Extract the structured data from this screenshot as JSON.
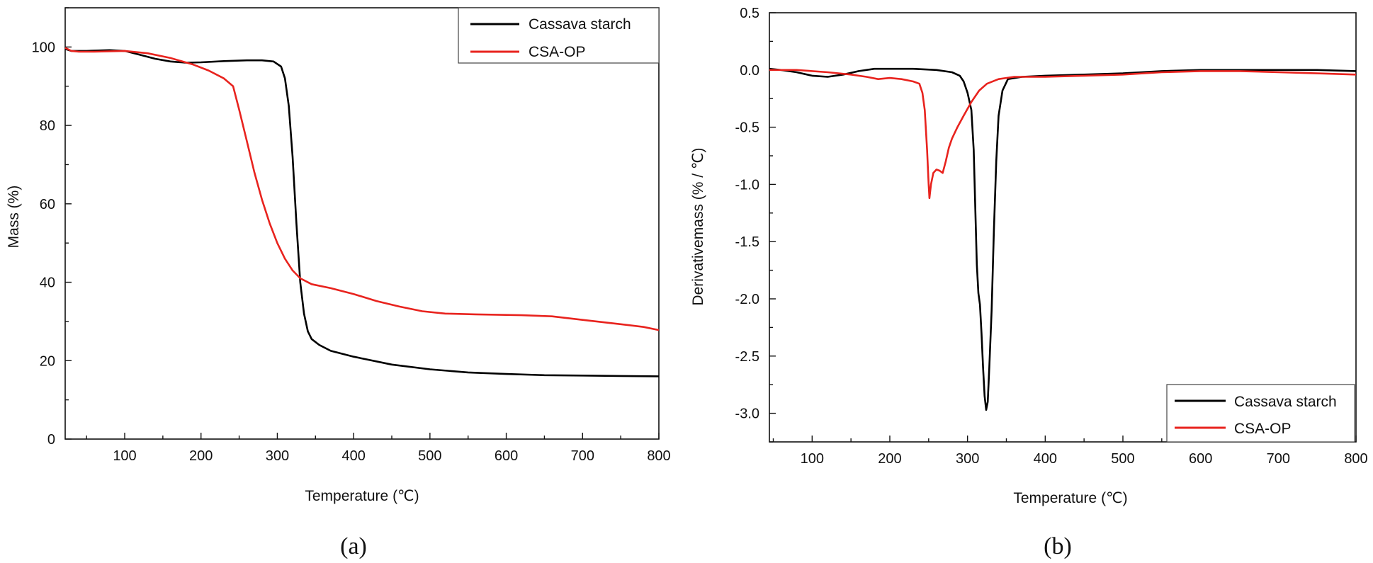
{
  "chart_data": [
    {
      "type": "line",
      "panel_label": "(a)",
      "xlabel": "Temperature (℃)",
      "ylabel": "Mass (%)",
      "xlim": [
        22,
        800
      ],
      "ylim": [
        0,
        110
      ],
      "xticks": [
        100,
        200,
        300,
        400,
        500,
        600,
        700,
        800
      ],
      "yticks": [
        0,
        20,
        40,
        60,
        80,
        100
      ],
      "grid": false,
      "legend_position": "top-right",
      "series": [
        {
          "name": "Cassava starch",
          "color": "#000000",
          "points": [
            [
              22,
              99.5
            ],
            [
              30,
              99
            ],
            [
              50,
              99
            ],
            [
              80,
              99.2
            ],
            [
              100,
              99
            ],
            [
              120,
              98
            ],
            [
              140,
              97
            ],
            [
              160,
              96.3
            ],
            [
              180,
              96
            ],
            [
              200,
              96.1
            ],
            [
              230,
              96.4
            ],
            [
              260,
              96.6
            ],
            [
              280,
              96.6
            ],
            [
              295,
              96.3
            ],
            [
              305,
              95
            ],
            [
              310,
              92
            ],
            [
              315,
              85
            ],
            [
              320,
              72
            ],
            [
              325,
              55
            ],
            [
              330,
              40
            ],
            [
              335,
              32
            ],
            [
              340,
              27.5
            ],
            [
              345,
              25.5
            ],
            [
              355,
              24
            ],
            [
              370,
              22.5
            ],
            [
              400,
              21
            ],
            [
              450,
              19
            ],
            [
              500,
              17.8
            ],
            [
              550,
              17
            ],
            [
              600,
              16.6
            ],
            [
              650,
              16.3
            ],
            [
              700,
              16.2
            ],
            [
              750,
              16.1
            ],
            [
              800,
              16
            ]
          ]
        },
        {
          "name": "CSA-OP",
          "color": "#e8231e",
          "points": [
            [
              22,
              99.8
            ],
            [
              30,
              99
            ],
            [
              40,
              98.8
            ],
            [
              60,
              98.8
            ],
            [
              100,
              99
            ],
            [
              130,
              98.4
            ],
            [
              160,
              97.2
            ],
            [
              190,
              95.5
            ],
            [
              210,
              94
            ],
            [
              230,
              92
            ],
            [
              242,
              90
            ],
            [
              250,
              84
            ],
            [
              260,
              76
            ],
            [
              270,
              68
            ],
            [
              280,
              61
            ],
            [
              290,
              55
            ],
            [
              300,
              50
            ],
            [
              310,
              46
            ],
            [
              320,
              43
            ],
            [
              330,
              41
            ],
            [
              345,
              39.5
            ],
            [
              370,
              38.5
            ],
            [
              400,
              37
            ],
            [
              430,
              35.2
            ],
            [
              460,
              33.8
            ],
            [
              490,
              32.6
            ],
            [
              520,
              32
            ],
            [
              560,
              31.8
            ],
            [
              620,
              31.6
            ],
            [
              660,
              31.3
            ],
            [
              700,
              30.4
            ],
            [
              750,
              29.3
            ],
            [
              780,
              28.6
            ],
            [
              800,
              27.8
            ]
          ]
        }
      ]
    },
    {
      "type": "line",
      "panel_label": "(b)",
      "xlabel": "Temperature (℃)",
      "ylabel": "Derivativemass (% / ℃)",
      "xlim": [
        45,
        800
      ],
      "ylim": [
        -3.25,
        0.5
      ],
      "xticks": [
        100,
        200,
        300,
        400,
        500,
        600,
        700,
        800
      ],
      "yticks": [
        -3.0,
        -2.5,
        -2.0,
        -1.5,
        -1.0,
        -0.5,
        0.0,
        0.5
      ],
      "ytick_labels": [
        "-3.0",
        "-2.5",
        "-2.0",
        "-1.5",
        "-1.0",
        "-0.5",
        "0.0",
        "0.5"
      ],
      "grid": false,
      "legend_position": "bottom-right",
      "series": [
        {
          "name": "Cassava starch",
          "color": "#000000",
          "points": [
            [
              45,
              0.01
            ],
            [
              60,
              0
            ],
            [
              80,
              -0.02
            ],
            [
              100,
              -0.05
            ],
            [
              120,
              -0.06
            ],
            [
              140,
              -0.04
            ],
            [
              160,
              -0.01
            ],
            [
              180,
              0.01
            ],
            [
              200,
              0.01
            ],
            [
              230,
              0.01
            ],
            [
              260,
              0
            ],
            [
              280,
              -0.02
            ],
            [
              290,
              -0.05
            ],
            [
              295,
              -0.1
            ],
            [
              300,
              -0.2
            ],
            [
              305,
              -0.35
            ],
            [
              308,
              -0.7
            ],
            [
              310,
              -1.2
            ],
            [
              312,
              -1.7
            ],
            [
              314,
              -1.95
            ],
            [
              316,
              -2.05
            ],
            [
              318,
              -2.3
            ],
            [
              320,
              -2.6
            ],
            [
              322,
              -2.85
            ],
            [
              324,
              -2.97
            ],
            [
              326,
              -2.9
            ],
            [
              328,
              -2.6
            ],
            [
              331,
              -2.1
            ],
            [
              334,
              -1.4
            ],
            [
              337,
              -0.8
            ],
            [
              340,
              -0.4
            ],
            [
              345,
              -0.18
            ],
            [
              352,
              -0.08
            ],
            [
              370,
              -0.06
            ],
            [
              400,
              -0.05
            ],
            [
              450,
              -0.04
            ],
            [
              500,
              -0.03
            ],
            [
              550,
              -0.01
            ],
            [
              600,
              0
            ],
            [
              650,
              0
            ],
            [
              700,
              0
            ],
            [
              750,
              0
            ],
            [
              800,
              -0.01
            ]
          ]
        },
        {
          "name": "CSA-OP",
          "color": "#e8231e",
          "points": [
            [
              45,
              0
            ],
            [
              80,
              0
            ],
            [
              120,
              -0.02
            ],
            [
              150,
              -0.04
            ],
            [
              170,
              -0.06
            ],
            [
              185,
              -0.08
            ],
            [
              200,
              -0.07
            ],
            [
              215,
              -0.08
            ],
            [
              230,
              -0.1
            ],
            [
              238,
              -0.12
            ],
            [
              242,
              -0.2
            ],
            [
              245,
              -0.35
            ],
            [
              248,
              -0.7
            ],
            [
              250,
              -1.0
            ],
            [
              251,
              -1.12
            ],
            [
              253,
              -1.0
            ],
            [
              256,
              -0.9
            ],
            [
              260,
              -0.87
            ],
            [
              264,
              -0.88
            ],
            [
              268,
              -0.9
            ],
            [
              272,
              -0.8
            ],
            [
              276,
              -0.68
            ],
            [
              280,
              -0.6
            ],
            [
              287,
              -0.5
            ],
            [
              295,
              -0.4
            ],
            [
              305,
              -0.28
            ],
            [
              315,
              -0.18
            ],
            [
              325,
              -0.12
            ],
            [
              340,
              -0.08
            ],
            [
              360,
              -0.06
            ],
            [
              400,
              -0.06
            ],
            [
              450,
              -0.05
            ],
            [
              500,
              -0.04
            ],
            [
              550,
              -0.02
            ],
            [
              600,
              -0.01
            ],
            [
              650,
              -0.01
            ],
            [
              700,
              -0.02
            ],
            [
              750,
              -0.03
            ],
            [
              800,
              -0.04
            ]
          ]
        }
      ]
    }
  ]
}
